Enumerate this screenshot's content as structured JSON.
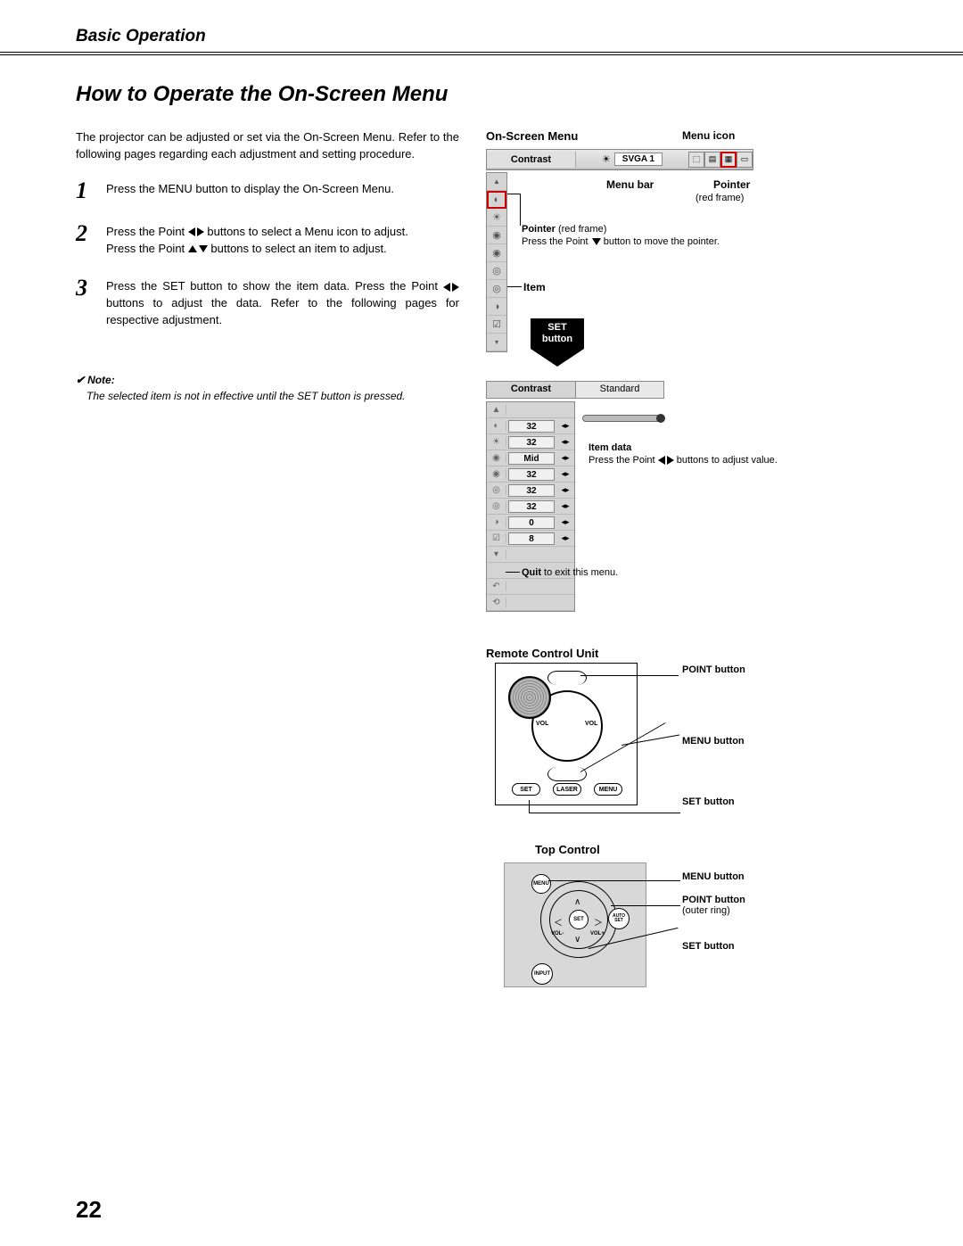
{
  "section_header": "Basic Operation",
  "title": "How to Operate the On-Screen Menu",
  "intro": "The projector can be adjusted or set via the On-Screen Menu. Refer to the following pages regarding each adjustment and setting procedure.",
  "steps": [
    {
      "num": "1",
      "text_pre": "Press the MENU button to display the On-Screen Menu.",
      "arrows": ""
    },
    {
      "num": "2",
      "line1_a": "Press the Point ",
      "line1_b": " buttons to select a Menu icon to adjust.",
      "line2_a": "Press the Point ",
      "line2_b": " buttons to select an item to adjust."
    },
    {
      "num": "3",
      "line1_a": "Press the SET button to show the item data. Press the Point ",
      "line1_b": " buttons to adjust the data. Refer to the following pages for respective adjustment."
    }
  ],
  "note_label": "Note:",
  "note_text": "The selected item is not in effective until the SET button is pressed.",
  "page_number": "22",
  "labels": {
    "onscreen_menu": "On-Screen Menu",
    "menu_icon": "Menu icon",
    "menu_bar": "Menu bar",
    "pointer": "Pointer",
    "red_frame": "(red frame)",
    "pointer_desc_line1": "Press the Point ",
    "pointer_desc_line2": " button to move the pointer.",
    "item": "Item",
    "set_button_a": "SET",
    "set_button_b": "button",
    "item_data": "Item data",
    "item_data_desc_a": "Press the Point ",
    "item_data_desc_b": " buttons to adjust value.",
    "quit_a": "Quit",
    "quit_b": " to exit this menu.",
    "remote_control": "Remote Control Unit",
    "top_control": "Top Control",
    "point_button": "POINT button",
    "menu_button": "MENU button",
    "set_button_label": "SET button",
    "outer_ring": "(outer ring)"
  },
  "menu1": {
    "title": "Contrast",
    "mode": "SVGA 1"
  },
  "menu2": {
    "title": "Contrast",
    "mode": "Standard",
    "rows": [
      {
        "icon": "◐",
        "value": "32"
      },
      {
        "icon": "☀",
        "value": "32"
      },
      {
        "icon": "◉",
        "value": "Mid"
      },
      {
        "icon": "◉",
        "value": "32"
      },
      {
        "icon": "◎",
        "value": "32"
      },
      {
        "icon": "◎",
        "value": "32"
      },
      {
        "icon": "◑",
        "value": "0"
      },
      {
        "icon": "☑",
        "value": "8"
      }
    ],
    "tail_icons": [
      "▾",
      "",
      "↶",
      "⟲"
    ]
  },
  "remote_buttons": {
    "set": "SET",
    "laser": "LASER",
    "menu": "MENU",
    "vol": "VOL"
  },
  "top_buttons": {
    "menu": "MENU",
    "set": "SET",
    "auto": "AUTO SET",
    "input": "INPUT",
    "vol_minus": "VOL-",
    "vol_plus": "VOL+"
  }
}
